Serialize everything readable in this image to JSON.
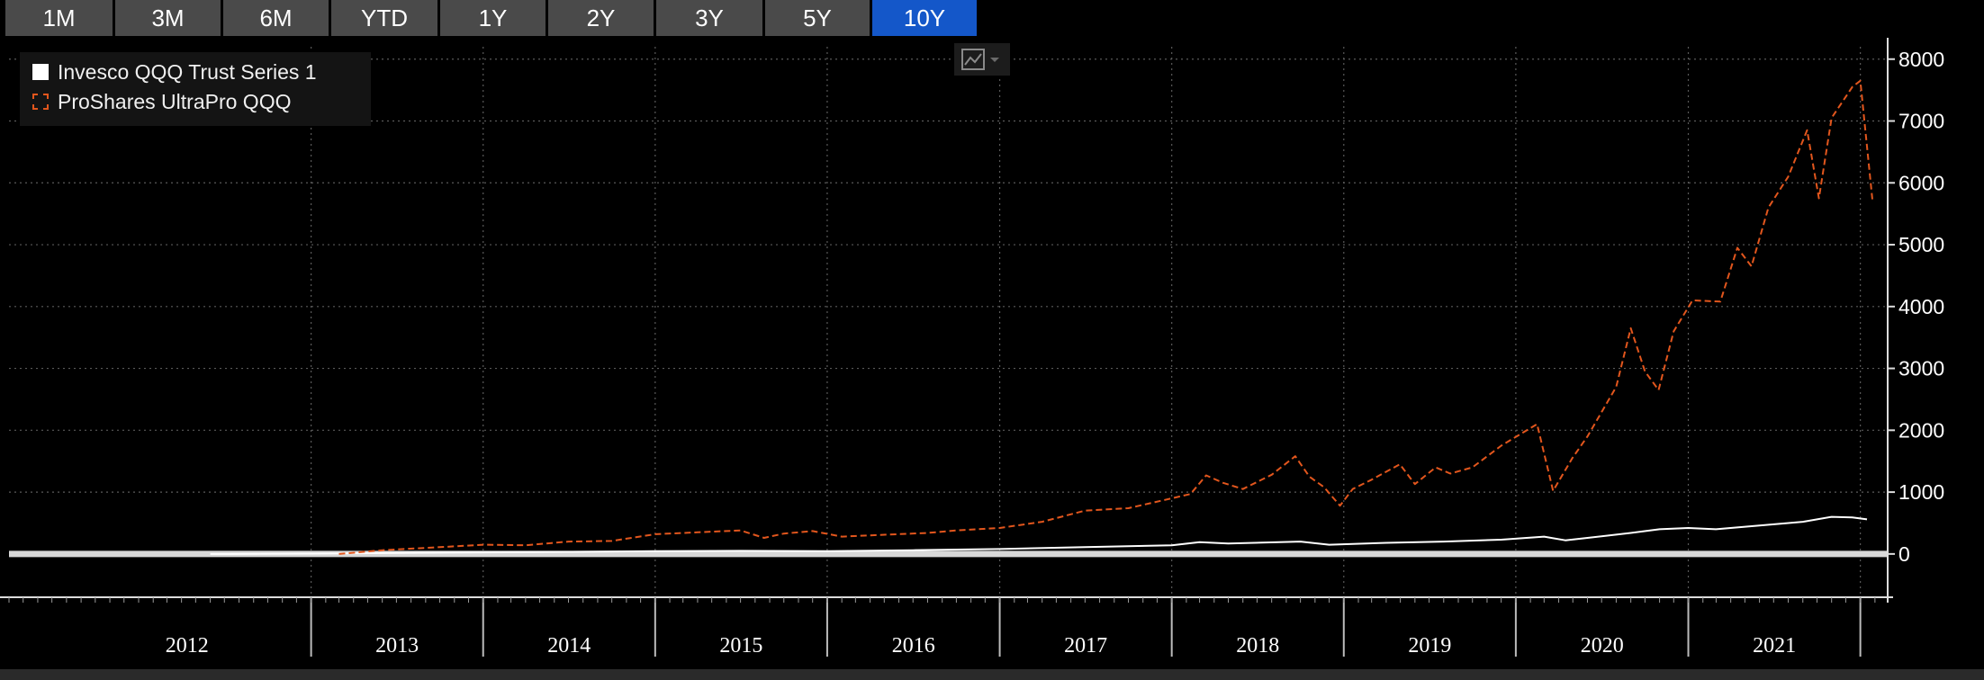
{
  "tabs": [
    {
      "label": "1M",
      "active": false
    },
    {
      "label": "3M",
      "active": false
    },
    {
      "label": "6M",
      "active": false
    },
    {
      "label": "YTD",
      "active": false
    },
    {
      "label": "1Y",
      "active": false
    },
    {
      "label": "2Y",
      "active": false
    },
    {
      "label": "3Y",
      "active": false
    },
    {
      "label": "5Y",
      "active": false
    },
    {
      "label": "10Y",
      "active": true
    }
  ],
  "legend": {
    "items": [
      "Invesco QQQ Trust Series 1",
      "ProShares UltraPro QQQ"
    ]
  },
  "toolbar": {
    "chart_type_icon": "line-chart-icon"
  },
  "colors": {
    "background": "#000000",
    "series_qqq": "#ffffff",
    "series_tqqq": "#e2561d",
    "active_tab": "#1457c9",
    "tab": "#4a4a4a",
    "grid": "#5a5a5a"
  },
  "chart_data": {
    "type": "line",
    "x_axis": {
      "type": "date",
      "range": [
        "2011-04-01",
        "2022-02-28"
      ],
      "tick_labels": [
        "2012",
        "2013",
        "2014",
        "2015",
        "2016",
        "2017",
        "2018",
        "2019",
        "2020",
        "2021"
      ]
    },
    "y_axis": {
      "range": [
        -700,
        8200
      ],
      "position": "right",
      "tick_values": [
        0,
        1000,
        2000,
        3000,
        4000,
        5000,
        6000,
        7000,
        8000
      ],
      "tick_labels": [
        "0",
        "1000",
        "2000",
        "3000",
        "4000",
        "5000",
        "6000",
        "7000",
        "8000"
      ]
    },
    "grid": true,
    "legend_position": "top-left",
    "baseline": 0,
    "series": [
      {
        "name": "Invesco QQQ Trust Series 1",
        "style": "solid",
        "points": [
          [
            "2012-06-01",
            0
          ],
          [
            "2013-01-01",
            5
          ],
          [
            "2013-07-01",
            15
          ],
          [
            "2014-01-01",
            25
          ],
          [
            "2014-07-01",
            35
          ],
          [
            "2015-01-01",
            45
          ],
          [
            "2015-07-01",
            50
          ],
          [
            "2016-01-01",
            45
          ],
          [
            "2016-07-01",
            60
          ],
          [
            "2017-01-01",
            80
          ],
          [
            "2017-07-01",
            110
          ],
          [
            "2018-01-01",
            140
          ],
          [
            "2018-03-01",
            190
          ],
          [
            "2018-05-01",
            170
          ],
          [
            "2018-10-01",
            200
          ],
          [
            "2018-12-01",
            150
          ],
          [
            "2019-04-01",
            180
          ],
          [
            "2019-08-01",
            200
          ],
          [
            "2019-12-01",
            230
          ],
          [
            "2020-03-01",
            280
          ],
          [
            "2020-04-15",
            220
          ],
          [
            "2020-06-01",
            260
          ],
          [
            "2020-09-01",
            340
          ],
          [
            "2020-11-01",
            400
          ],
          [
            "2021-01-01",
            420
          ],
          [
            "2021-03-01",
            400
          ],
          [
            "2021-06-01",
            460
          ],
          [
            "2021-09-01",
            520
          ],
          [
            "2021-11-01",
            600
          ],
          [
            "2021-12-15",
            590
          ],
          [
            "2022-01-15",
            560
          ]
        ]
      },
      {
        "name": "ProShares UltraPro QQQ",
        "style": "dashed",
        "points": [
          [
            "2013-03-01",
            0
          ],
          [
            "2013-06-01",
            60
          ],
          [
            "2013-10-01",
            110
          ],
          [
            "2014-01-01",
            150
          ],
          [
            "2014-04-01",
            140
          ],
          [
            "2014-07-01",
            200
          ],
          [
            "2014-10-01",
            210
          ],
          [
            "2015-01-01",
            320
          ],
          [
            "2015-04-01",
            350
          ],
          [
            "2015-07-01",
            380
          ],
          [
            "2015-08-20",
            260
          ],
          [
            "2015-10-01",
            330
          ],
          [
            "2015-12-01",
            370
          ],
          [
            "2016-02-01",
            280
          ],
          [
            "2016-05-01",
            310
          ],
          [
            "2016-08-01",
            340
          ],
          [
            "2016-10-01",
            380
          ],
          [
            "2017-01-01",
            420
          ],
          [
            "2017-04-01",
            520
          ],
          [
            "2017-07-01",
            700
          ],
          [
            "2017-10-01",
            740
          ],
          [
            "2018-01-01",
            900
          ],
          [
            "2018-02-10",
            970
          ],
          [
            "2018-03-15",
            1270
          ],
          [
            "2018-04-20",
            1150
          ],
          [
            "2018-06-01",
            1050
          ],
          [
            "2018-08-01",
            1280
          ],
          [
            "2018-09-20",
            1580
          ],
          [
            "2018-10-20",
            1250
          ],
          [
            "2018-11-20",
            1080
          ],
          [
            "2018-12-24",
            780
          ],
          [
            "2019-01-20",
            1050
          ],
          [
            "2019-03-01",
            1200
          ],
          [
            "2019-04-30",
            1450
          ],
          [
            "2019-06-01",
            1130
          ],
          [
            "2019-07-15",
            1400
          ],
          [
            "2019-08-15",
            1300
          ],
          [
            "2019-10-01",
            1400
          ],
          [
            "2019-12-01",
            1750
          ],
          [
            "2020-02-15",
            2100
          ],
          [
            "2020-03-20",
            1020
          ],
          [
            "2020-04-30",
            1550
          ],
          [
            "2020-06-01",
            1900
          ],
          [
            "2020-08-01",
            2700
          ],
          [
            "2020-09-01",
            3650
          ],
          [
            "2020-10-01",
            2950
          ],
          [
            "2020-10-30",
            2650
          ],
          [
            "2020-12-01",
            3600
          ],
          [
            "2021-01-10",
            4100
          ],
          [
            "2021-03-10",
            4080
          ],
          [
            "2021-04-15",
            4950
          ],
          [
            "2021-05-15",
            4650
          ],
          [
            "2021-06-20",
            5600
          ],
          [
            "2021-08-01",
            6100
          ],
          [
            "2021-09-10",
            6850
          ],
          [
            "2021-10-05",
            5750
          ],
          [
            "2021-11-01",
            7050
          ],
          [
            "2021-12-15",
            7550
          ],
          [
            "2022-01-01",
            7650
          ],
          [
            "2022-01-27",
            5700
          ]
        ]
      }
    ]
  }
}
